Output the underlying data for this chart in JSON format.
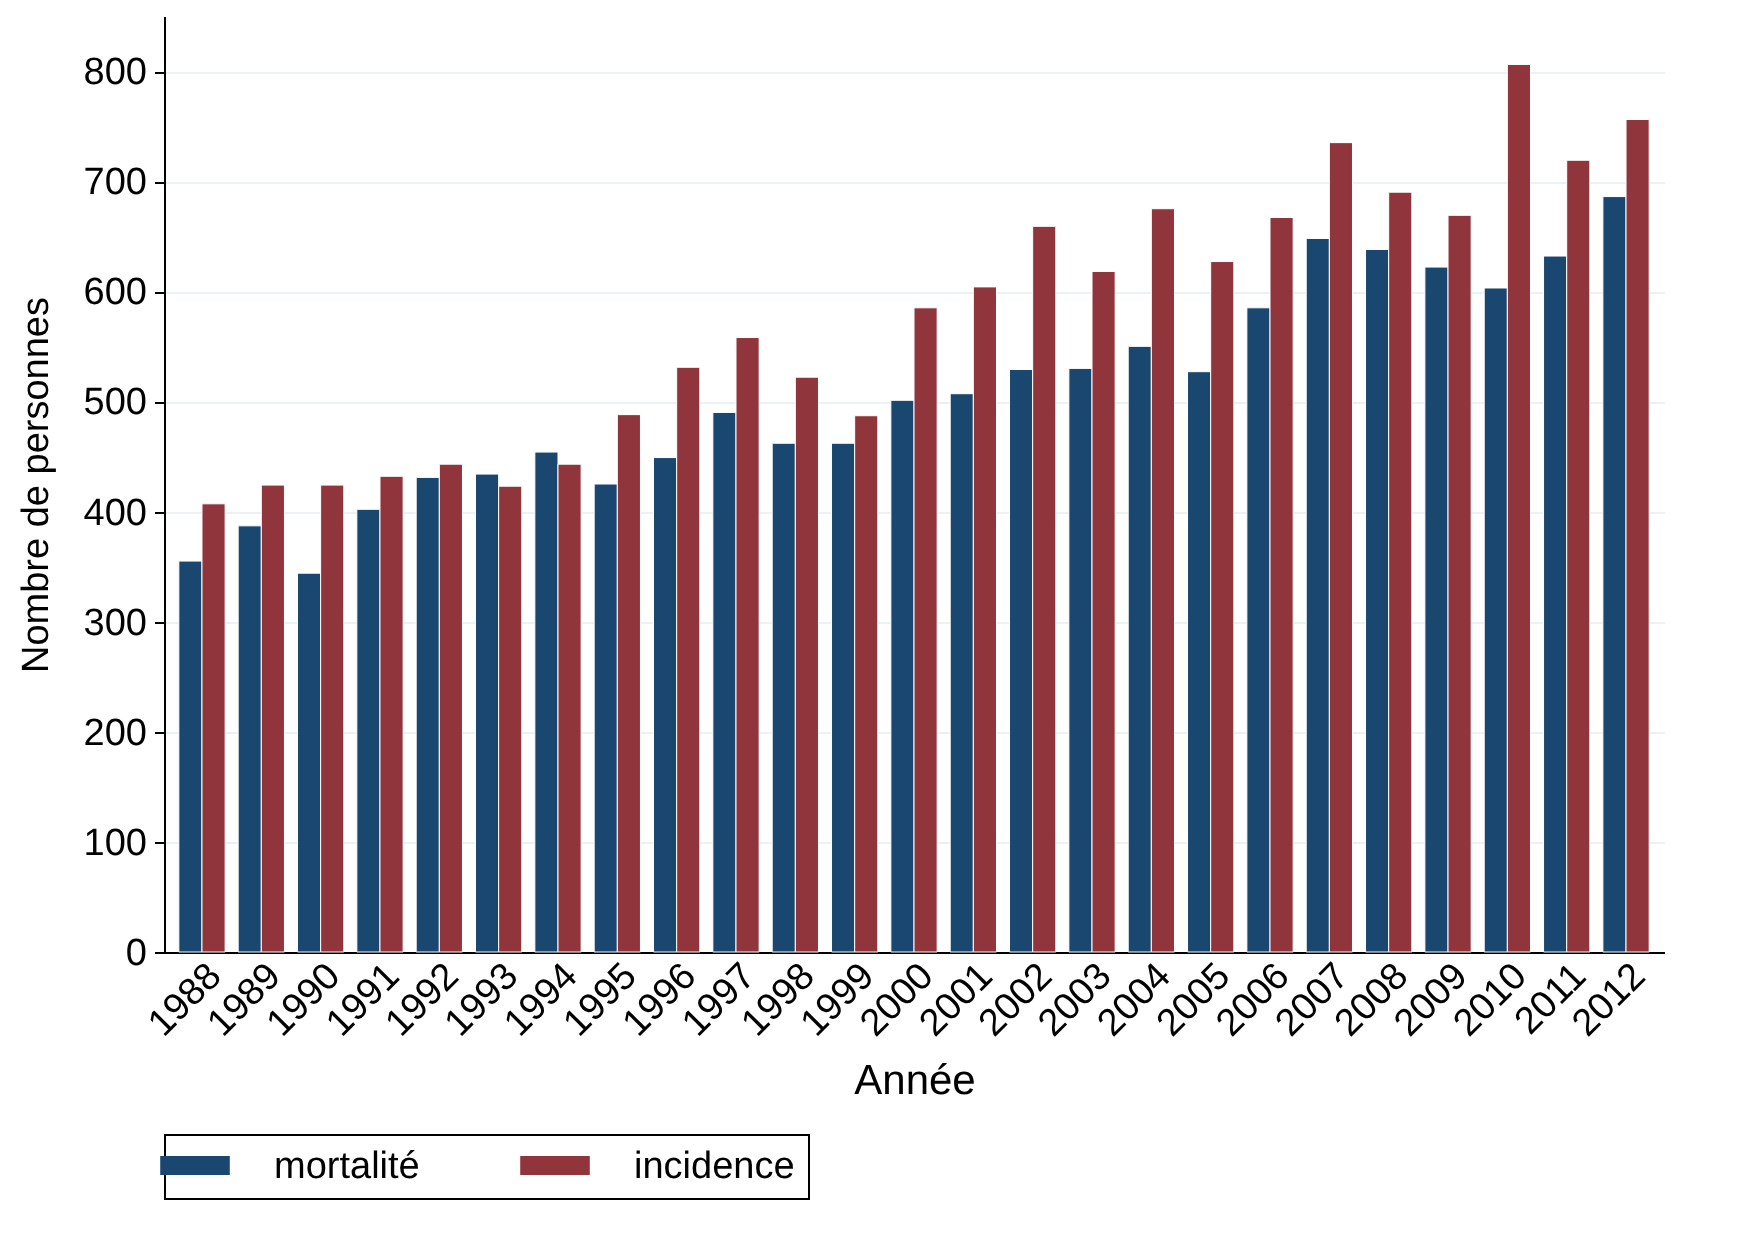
{
  "chart_data": {
    "type": "bar",
    "xlabel": "Année",
    "ylabel": "Nombre de personnes",
    "categories": [
      "1988",
      "1989",
      "1990",
      "1991",
      "1992",
      "1993",
      "1994",
      "1995",
      "1996",
      "1997",
      "1998",
      "1999",
      "2000",
      "2001",
      "2002",
      "2003",
      "2004",
      "2005",
      "2006",
      "2007",
      "2008",
      "2009",
      "2010",
      "2011",
      "2012"
    ],
    "series": [
      {
        "name": "mortalité",
        "color": "#1a476f",
        "values": [
          355,
          387,
          344,
          402,
          431,
          434,
          454,
          425,
          449,
          490,
          462,
          462,
          501,
          507,
          529,
          530,
          550,
          527,
          585,
          648,
          638,
          622,
          603,
          632,
          686
        ]
      },
      {
        "name": "incidence",
        "color": "#90353b",
        "values": [
          407,
          424,
          424,
          432,
          443,
          423,
          443,
          488,
          531,
          558,
          522,
          487,
          585,
          604,
          659,
          618,
          675,
          627,
          667,
          735,
          690,
          669,
          806,
          719,
          756
        ]
      }
    ],
    "ylim": [
      0,
      850
    ],
    "yticks": [
      0,
      100,
      200,
      300,
      400,
      500,
      600,
      700,
      800
    ],
    "grid": "y",
    "legend": "bottom"
  }
}
